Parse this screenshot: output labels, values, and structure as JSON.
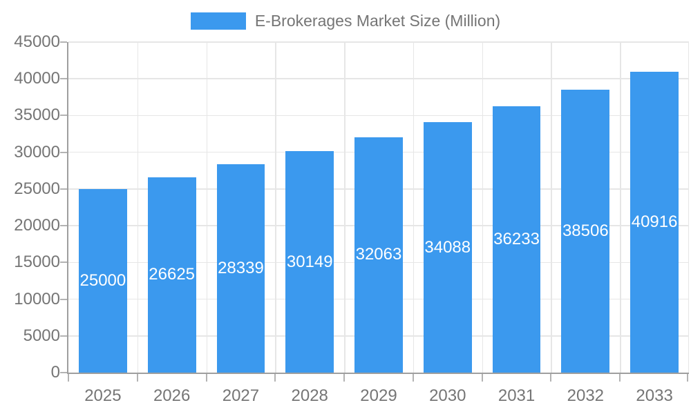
{
  "chart_data": {
    "type": "bar",
    "title": "E-Brokerages Market Size (Million)",
    "categories": [
      "2025",
      "2026",
      "2027",
      "2028",
      "2029",
      "2030",
      "2031",
      "2032",
      "2033"
    ],
    "series": [
      {
        "name": "E-Brokerages Market Size (Million)",
        "values": [
          25000,
          26625,
          28339,
          30149,
          32063,
          34088,
          36233,
          38506,
          40916
        ]
      }
    ],
    "xlabel": "",
    "ylabel": "",
    "ylim": [
      0,
      45000
    ],
    "ytick_step": 5000,
    "ytick_labels": [
      "0",
      "5000",
      "10000",
      "15000",
      "20000",
      "25000",
      "30000",
      "35000",
      "40000",
      "45000"
    ],
    "grid": true,
    "legend_position": "top",
    "bar_value_labels_visible": true,
    "colors": {
      "bar": "#3b99ee",
      "bar_label": "#ffffff",
      "grid": "#e6e6e6",
      "axis": "#9e9e9e",
      "tick": "#b3b3b3",
      "text": "#757575",
      "background": "#ffffff"
    }
  }
}
